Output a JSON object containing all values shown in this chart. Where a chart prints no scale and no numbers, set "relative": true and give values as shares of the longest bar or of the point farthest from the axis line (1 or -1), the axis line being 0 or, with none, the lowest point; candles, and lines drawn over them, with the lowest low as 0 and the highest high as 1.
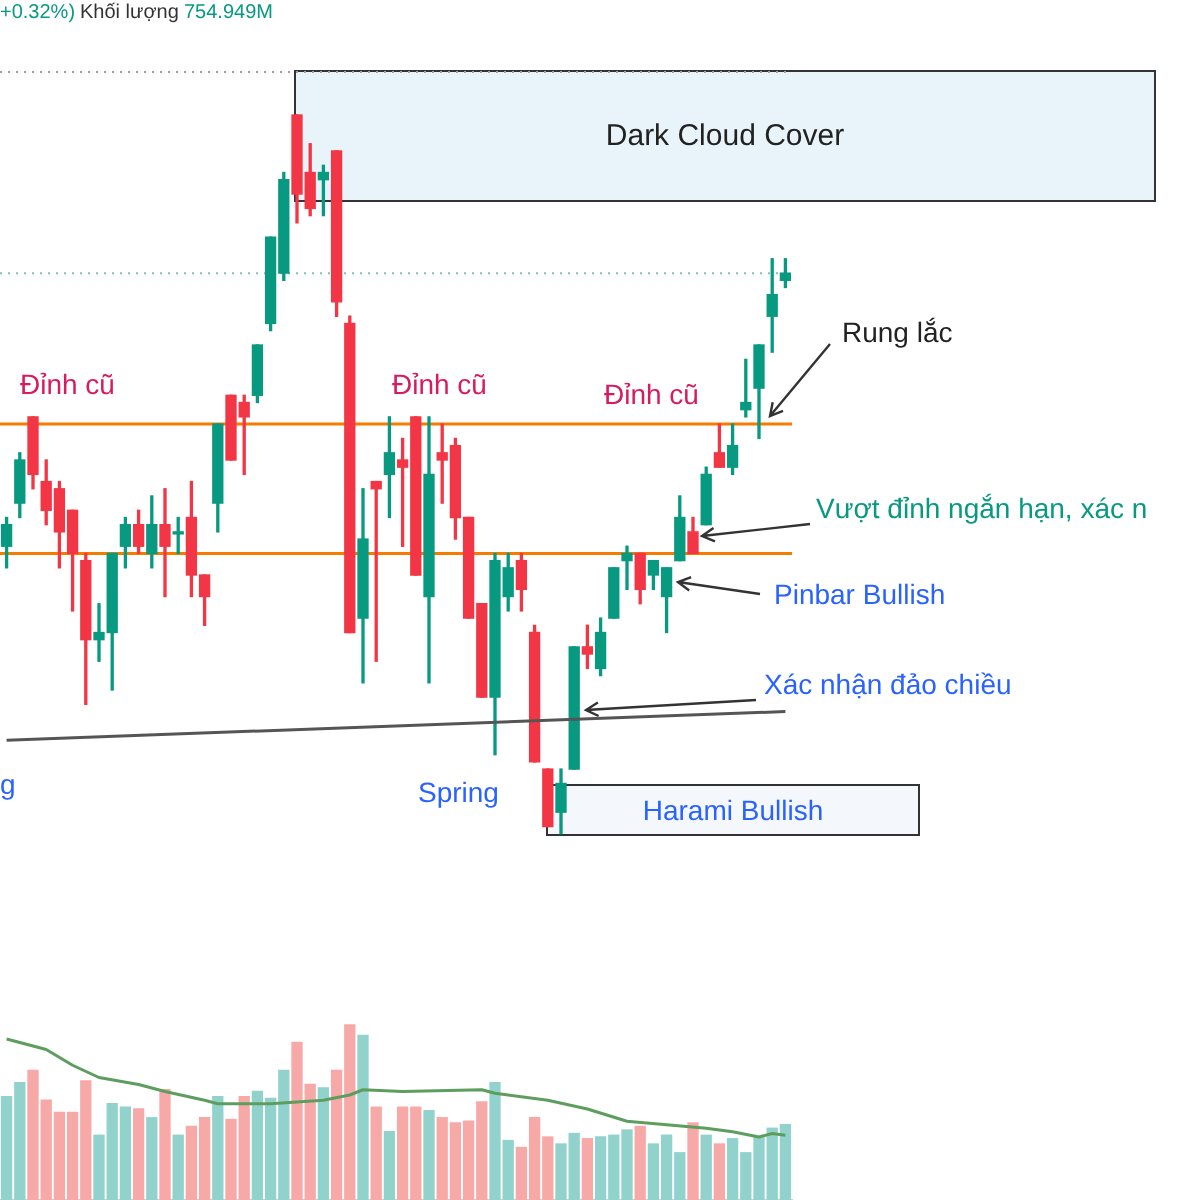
{
  "chart_data": [
    {
      "type": "candlestick",
      "relative": true,
      "categories": [
        null,
        null,
        null,
        null,
        null,
        null,
        null,
        null,
        null,
        null,
        null,
        null,
        null,
        null,
        null,
        null,
        null,
        null,
        null,
        null,
        null,
        null,
        null,
        null,
        null,
        null,
        null,
        null,
        null,
        null,
        null,
        null,
        null,
        null,
        null,
        null,
        null,
        null,
        null,
        null,
        null,
        null,
        null,
        null,
        null,
        null,
        null,
        null,
        null,
        null,
        null,
        null,
        null,
        null,
        null,
        null,
        null,
        null,
        null,
        null
      ],
      "ohlc": [
        [
          0.4,
          0.44,
          0.37,
          0.43
        ],
        [
          0.46,
          0.53,
          0.44,
          0.52
        ],
        [
          0.58,
          0.58,
          0.48,
          0.5
        ],
        [
          0.49,
          0.52,
          0.43,
          0.45
        ],
        [
          0.48,
          0.49,
          0.37,
          0.42
        ],
        [
          0.45,
          0.45,
          0.31,
          0.39
        ],
        [
          0.38,
          0.39,
          0.18,
          0.27
        ],
        [
          0.27,
          0.32,
          0.24,
          0.28
        ],
        [
          0.28,
          0.39,
          0.2,
          0.39
        ],
        [
          0.4,
          0.44,
          0.37,
          0.43
        ],
        [
          0.43,
          0.45,
          0.39,
          0.4
        ],
        [
          0.39,
          0.47,
          0.37,
          0.43
        ],
        [
          0.43,
          0.48,
          0.33,
          0.4
        ],
        [
          0.42,
          0.44,
          0.39,
          0.42
        ],
        [
          0.44,
          0.49,
          0.33,
          0.36
        ],
        [
          0.36,
          0.36,
          0.29,
          0.33
        ],
        [
          0.46,
          0.57,
          0.42,
          0.57
        ],
        [
          0.61,
          0.61,
          0.52,
          0.52
        ],
        [
          0.6,
          0.61,
          0.5,
          0.58
        ],
        [
          0.61,
          0.68,
          0.6,
          0.68
        ],
        [
          0.71,
          0.83,
          0.7,
          0.83
        ],
        [
          0.78,
          0.92,
          0.77,
          0.91
        ],
        [
          1,
          1,
          0.85,
          0.89
        ],
        [
          0.92,
          0.96,
          0.86,
          0.87
        ],
        [
          0.91,
          0.93,
          0.86,
          0.92
        ],
        [
          0.95,
          0.95,
          0.72,
          0.74
        ],
        [
          0.71,
          0.72,
          0.28,
          0.28
        ],
        [
          0.3,
          0.48,
          0.21,
          0.41
        ],
        [
          0.49,
          0.49,
          0.24,
          0.48
        ],
        [
          0.5,
          0.58,
          0.44,
          0.53
        ],
        [
          0.52,
          0.55,
          0.4,
          0.51
        ],
        [
          0.58,
          0.58,
          0.36,
          0.36
        ],
        [
          0.33,
          0.58,
          0.21,
          0.5
        ],
        [
          0.53,
          0.57,
          0.46,
          0.52
        ],
        [
          0.54,
          0.55,
          0.41,
          0.44
        ],
        [
          0.44,
          0.44,
          0.3,
          0.3
        ],
        [
          0.32,
          0.32,
          0.19,
          0.19
        ],
        [
          0.19,
          0.39,
          0.11,
          0.38
        ],
        [
          0.33,
          0.39,
          0.31,
          0.37
        ],
        [
          0.38,
          0.39,
          0.31,
          0.34
        ],
        [
          0.28,
          0.29,
          0.1,
          0.1
        ],
        [
          0.09,
          0.09,
          0.01,
          0.01
        ],
        [
          0.03,
          0.09,
          0,
          0.07
        ],
        [
          0.09,
          0.26,
          0.09,
          0.26
        ],
        [
          0.26,
          0.29,
          0.23,
          0.25
        ],
        [
          0.23,
          0.3,
          0.22,
          0.28
        ],
        [
          0.3,
          0.37,
          0.3,
          0.37
        ],
        [
          0.38,
          0.4,
          0.34,
          0.39
        ],
        [
          0.39,
          0.39,
          0.32,
          0.34
        ],
        [
          0.36,
          0.38,
          0.34,
          0.38
        ],
        [
          0.33,
          0.37,
          0.28,
          0.37
        ],
        [
          0.38,
          0.47,
          0.38,
          0.44
        ],
        [
          0.42,
          0.44,
          0.39,
          0.39
        ],
        [
          0.43,
          0.51,
          0.43,
          0.5
        ],
        [
          0.53,
          0.57,
          0.51,
          0.51
        ],
        [
          0.51,
          0.57,
          0.5,
          0.54
        ],
        [
          0.59,
          0.66,
          0.58,
          0.6
        ],
        [
          0.62,
          0.68,
          0.55,
          0.68
        ],
        [
          0.72,
          0.8,
          0.67,
          0.75
        ],
        [
          0.77,
          0.8,
          0.76,
          0.78
        ]
      ],
      "colors": [
        "#089981",
        "#089981",
        "#f23645",
        "#f23645",
        "#f23645",
        "#f23645",
        "#f23645",
        "#089981",
        "#089981",
        "#089981",
        "#f23645",
        "#089981",
        "#f23645",
        "#089981",
        "#f23645",
        "#f23645",
        "#089981",
        "#f23645",
        "#f23645",
        "#089981",
        "#089981",
        "#089981",
        "#f23645",
        "#f23645",
        "#089981",
        "#f23645",
        "#f23645",
        "#089981",
        "#f23645",
        "#089981",
        "#f23645",
        "#f23645",
        "#089981",
        "#f23645",
        "#f23645",
        "#f23645",
        "#f23645",
        "#089981",
        "#089981",
        "#f23645",
        "#f23645",
        "#f23645",
        "#089981",
        "#089981",
        "#f23645",
        "#089981",
        "#089981",
        "#089981",
        "#f23645",
        "#089981",
        "#089981",
        "#089981",
        "#f23645",
        "#089981",
        "#f23645",
        "#089981",
        "#089981",
        "#089981",
        "#089981",
        "#089981"
      ],
      "series": [
        {
          "type": "line",
          "values": [
            0.13,
            null,
            null,
            null,
            null,
            null,
            null,
            null,
            null,
            null,
            null,
            null,
            null,
            null,
            null,
            null,
            null,
            null,
            null,
            null,
            null,
            null,
            null,
            null,
            null,
            null,
            null,
            null,
            null,
            null,
            null,
            null,
            null,
            null,
            null,
            null,
            null,
            null,
            null,
            null,
            null,
            null,
            null,
            null,
            null,
            null,
            null,
            null,
            null,
            null,
            null,
            null,
            null,
            null,
            null,
            null,
            null,
            null,
            null,
            0.17
          ],
          "color": "#555555"
        }
      ],
      "ref_lines": [
        {
          "axis": "y",
          "value": 1.06,
          "color": "#9e9e9e",
          "line_style": "dotted"
        },
        {
          "axis": "y",
          "value": 0.78,
          "color": "#7cc4bc",
          "line_style": "dotted"
        },
        {
          "axis": "y",
          "value": 0.57,
          "color": "#f57c00",
          "line_style": "solid"
        },
        {
          "axis": "y",
          "value": 0.39,
          "color": "#f57c00",
          "line_style": "solid"
        }
      ],
      "annotations": [
        "+0.32%)",
        "Khối lượng",
        "754.949M",
        "Dark Cloud Cover",
        "Rung lắc",
        "Đỉnh cũ",
        "Đỉnh cũ",
        "Đỉnh cũ",
        "Vượt đỉnh ngắn hạn, xác n",
        "Pinbar Bullish",
        "Xác nhận đảo chiều",
        "g",
        "Spring",
        "Harami Bullish"
      ]
    },
    {
      "type": "bar",
      "relative": true,
      "categories": [
        null,
        null,
        null,
        null,
        null,
        null,
        null,
        null,
        null,
        null,
        null,
        null,
        null,
        null,
        null,
        null,
        null,
        null,
        null,
        null,
        null,
        null,
        null,
        null,
        null,
        null,
        null,
        null,
        null,
        null,
        null,
        null,
        null,
        null,
        null,
        null,
        null,
        null,
        null,
        null,
        null,
        null,
        null,
        null,
        null,
        null,
        null,
        null,
        null,
        null,
        null,
        null,
        null,
        null,
        null,
        null,
        null,
        null,
        null,
        null
      ],
      "series": [
        {
          "values": [
            0.59,
            0.67,
            0.74,
            0.57,
            0.5,
            0.5,
            0.68,
            0.37,
            0.55,
            0.53,
            0.52,
            0.47,
            0.63,
            0.37,
            0.42,
            0.47,
            0.59,
            0.46,
            0.59,
            0.62,
            0.58,
            0.74,
            0.9,
            0.66,
            0.64,
            0.74,
            1,
            0.94,
            0.53,
            0.39,
            0.53,
            0.53,
            0.51,
            0.47,
            0.44,
            0.45,
            0.56,
            0.67,
            0.34,
            0.3,
            0.47,
            0.36,
            0.32,
            0.38,
            0.35,
            0.36,
            0.37,
            0.4,
            0.42,
            0.32,
            0.37,
            0.27,
            0.44,
            0.37,
            0.32,
            0.35,
            0.27,
            0.36,
            0.41,
            0.43
          ],
          "colors": [
            "#92d2cc",
            "#92d2cc",
            "#f7a9a7",
            "#f7a9a7",
            "#f7a9a7",
            "#f7a9a7",
            "#f7a9a7",
            "#92d2cc",
            "#92d2cc",
            "#92d2cc",
            "#f7a9a7",
            "#92d2cc",
            "#f7a9a7",
            "#92d2cc",
            "#f7a9a7",
            "#f7a9a7",
            "#92d2cc",
            "#f7a9a7",
            "#f7a9a7",
            "#92d2cc",
            "#92d2cc",
            "#92d2cc",
            "#f7a9a7",
            "#f7a9a7",
            "#92d2cc",
            "#f7a9a7",
            "#f7a9a7",
            "#92d2cc",
            "#f7a9a7",
            "#92d2cc",
            "#f7a9a7",
            "#f7a9a7",
            "#92d2cc",
            "#f7a9a7",
            "#f7a9a7",
            "#f7a9a7",
            "#f7a9a7",
            "#92d2cc",
            "#92d2cc",
            "#f7a9a7",
            "#f7a9a7",
            "#f7a9a7",
            "#92d2cc",
            "#92d2cc",
            "#f7a9a7",
            "#92d2cc",
            "#92d2cc",
            "#92d2cc",
            "#f7a9a7",
            "#92d2cc",
            "#92d2cc",
            "#92d2cc",
            "#f7a9a7",
            "#92d2cc",
            "#f7a9a7",
            "#92d2cc",
            "#92d2cc",
            "#92d2cc",
            "#92d2cc",
            "#92d2cc"
          ]
        },
        {
          "type": "line",
          "color": "#5d9e5f",
          "values": [
            0.92,
            null,
            null,
            0.86,
            null,
            0.77,
            null,
            0.7,
            null,
            null,
            0.66,
            null,
            0.62,
            null,
            null,
            0.57,
            0.55,
            null,
            null,
            null,
            0.55,
            null,
            null,
            null,
            0.57,
            null,
            0.6,
            0.63,
            null,
            null,
            0.62,
            null,
            null,
            null,
            null,
            null,
            0.63,
            0.61,
            null,
            null,
            null,
            0.57,
            null,
            null,
            0.52,
            null,
            null,
            0.45,
            null,
            null,
            0.43,
            null,
            null,
            0.41,
            null,
            0.39,
            null,
            0.36,
            0.38,
            0.37
          ]
        }
      ]
    }
  ]
}
